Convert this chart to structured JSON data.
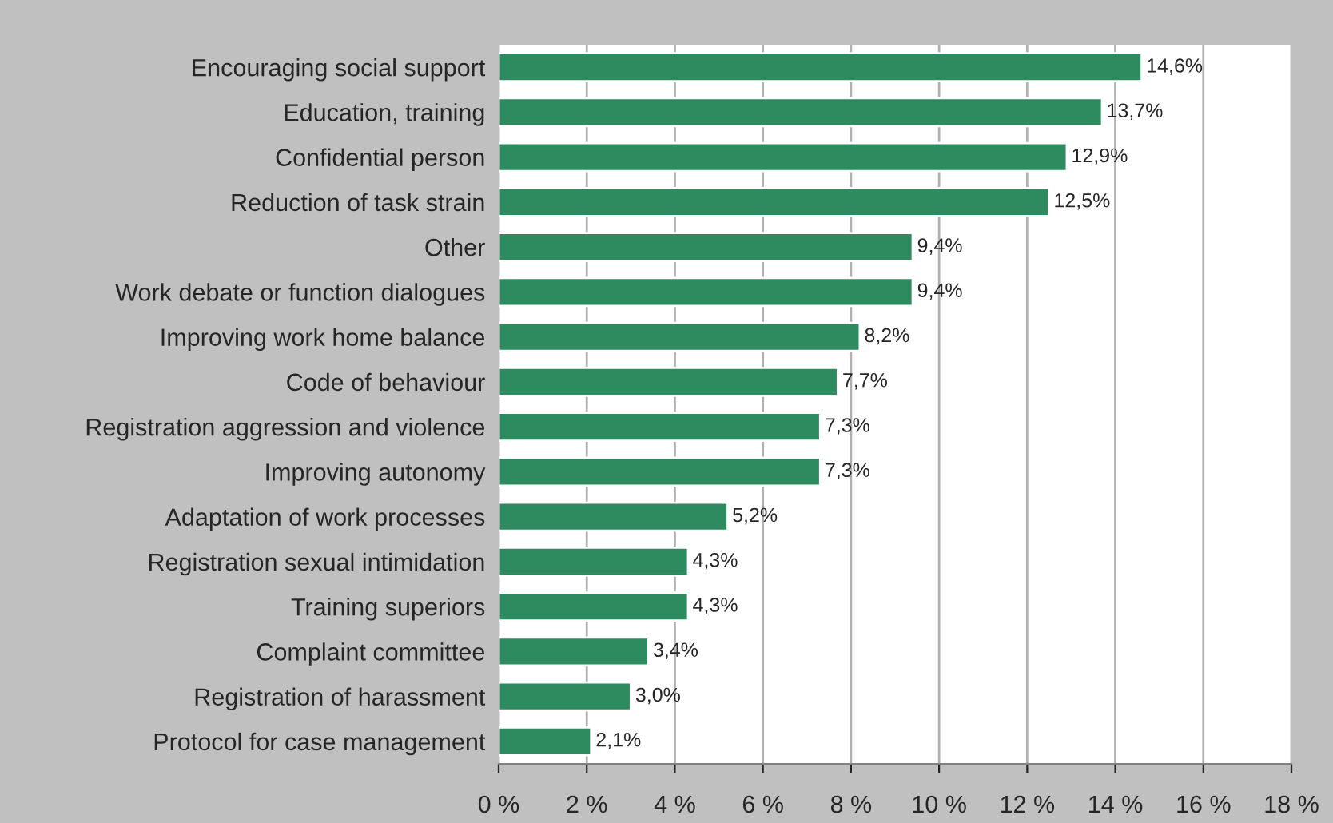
{
  "chart_data": {
    "type": "bar",
    "orientation": "horizontal",
    "categories": [
      "Encouraging social support",
      "Education, training",
      "Confidential person",
      "Reduction of task strain",
      "Other",
      "Work debate or function dialogues",
      "Improving work home balance",
      "Code of behaviour",
      "Registration aggression and violence",
      "Improving autonomy",
      "Adaptation of work processes",
      "Registration sexual intimidation",
      "Training superiors",
      "Complaint committee",
      "Registration of harassment",
      "Protocol for case management"
    ],
    "values": [
      14.6,
      13.7,
      12.9,
      12.5,
      9.4,
      9.4,
      8.2,
      7.7,
      7.3,
      7.3,
      5.2,
      4.3,
      4.3,
      3.4,
      3.0,
      2.1
    ],
    "value_labels": [
      "14,6%",
      "13,7%",
      "12,9%",
      "12,5%",
      "9,4%",
      "9,4%",
      "8,2%",
      "7,7%",
      "7,3%",
      "7,3%",
      "5,2%",
      "4,3%",
      "4,3%",
      "3,4%",
      "3,0%",
      "2,1%"
    ],
    "color": "#2e8b5f",
    "xlim": [
      0,
      18
    ],
    "xticks": [
      {
        "value": 0,
        "label": "0 %"
      },
      {
        "value": 2,
        "label": "2 %"
      },
      {
        "value": 4,
        "label": "4 %"
      },
      {
        "value": 6,
        "label": "6 %"
      },
      {
        "value": 8,
        "label": "8 %"
      },
      {
        "value": 10,
        "label": "10 %"
      },
      {
        "value": 12,
        "label": "12 %"
      },
      {
        "value": 14,
        "label": "14 %"
      },
      {
        "value": 16,
        "label": "16 %"
      },
      {
        "value": 18,
        "label": "18 %"
      }
    ],
    "grid": "x",
    "legend": false
  }
}
